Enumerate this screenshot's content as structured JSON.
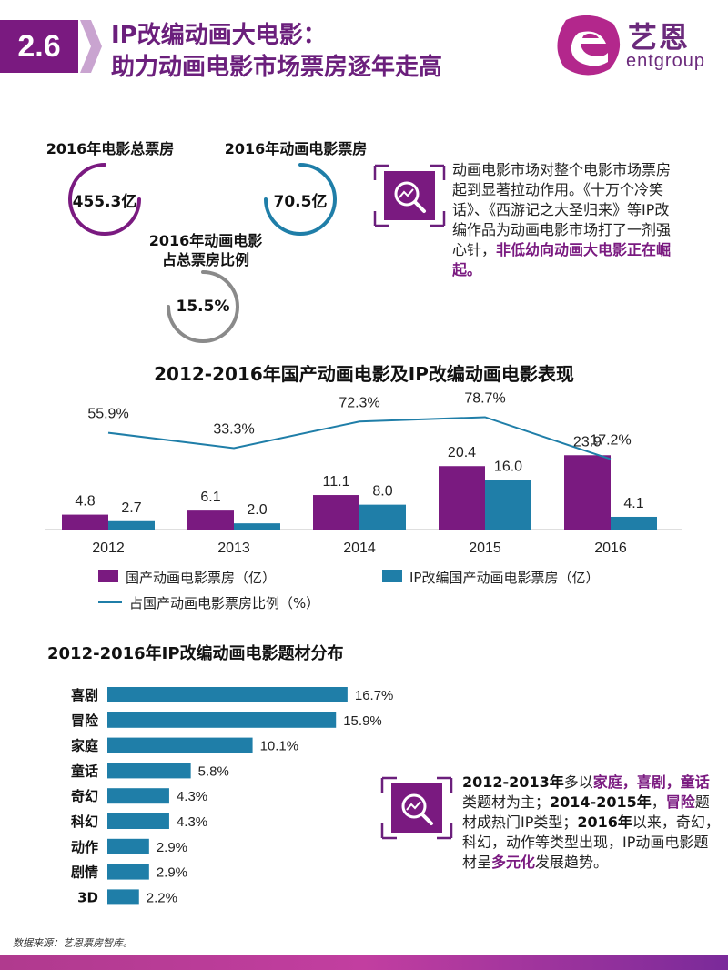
{
  "header": {
    "section": "2.6",
    "title_line1": "IP改编动画大电影：",
    "title_line2": "助力动画电影市场票房逐年走高",
    "logo_cn": "艺恩",
    "logo_en": "entgroup"
  },
  "stats": [
    {
      "label": "2016年电影总票房",
      "value": "455.3亿"
    },
    {
      "label": "2016年动画电影票房",
      "value": "70.5亿"
    },
    {
      "label_line1": "2016年动画电影",
      "label_line2": "占总票房比例",
      "value": "15.5%"
    }
  ],
  "info1": {
    "text": "动画电影市场对整个电影市场票房起到显著拉动作用。《十万个冷笑话》、《西游记之大圣归来》等IP改编作品为动画电影市场打了一剂强心针，",
    "highlight": "非低幼向动画大电影正在崛起。"
  },
  "info2": {
    "p1": "2012-2013年",
    "p2": "多以",
    "p3": "家庭，喜剧，童话",
    "p4": "类题材为主；",
    "p5": "2014-2015年",
    "p6": "，",
    "p7": "冒险",
    "p8": "题材成热门IP类型；",
    "p9": "2016年",
    "p10": "以来，奇幻，科幻，动作等类型出现，IP动画电影题材呈",
    "p11": "多元化",
    "p12": "发展趋势。"
  },
  "colors": {
    "purple": "#7a1a80",
    "teal": "#1f7ea8",
    "gray": "#7f7f7f"
  },
  "chart_data": [
    {
      "type": "bar",
      "title": "2012-2016年国产动画电影及IP改编动画电影表现",
      "categories": [
        "2012",
        "2013",
        "2014",
        "2015",
        "2016"
      ],
      "series": [
        {
          "name": "国产动画电影票房（亿）",
          "values": [
            4.8,
            6.1,
            11.1,
            20.4,
            23.9
          ],
          "labels": [
            "4.8",
            "6.1",
            "11.1",
            "20.4",
            "23.9"
          ]
        },
        {
          "name": "IP改编国产动画电影票房（亿）",
          "values": [
            2.7,
            2.0,
            8.0,
            16.0,
            4.1
          ],
          "labels": [
            "2.7",
            "2.0",
            "8.0",
            "16.0",
            "4.1"
          ]
        }
      ],
      "line_series": {
        "name": "占国产动画电影票房比例（%）",
        "values": [
          55.9,
          33.3,
          72.3,
          78.7,
          17.2
        ],
        "labels": [
          "55.9%",
          "33.3%",
          "72.3%",
          "78.7%",
          "17.2%"
        ]
      },
      "legend": "bottom"
    },
    {
      "type": "bar",
      "orientation": "horizontal",
      "title": "2012-2016年IP改编动画电影题材分布",
      "categories": [
        "喜剧",
        "冒险",
        "家庭",
        "童话",
        "奇幻",
        "科幻",
        "动作",
        "剧情",
        "3D"
      ],
      "values": [
        16.7,
        15.9,
        10.1,
        5.8,
        4.3,
        4.3,
        2.9,
        2.9,
        2.2
      ],
      "labels": [
        "16.7%",
        "15.9%",
        "10.1%",
        "5.8%",
        "4.3%",
        "4.3%",
        "2.9%",
        "2.9%",
        "2.2%"
      ]
    }
  ],
  "source": "数据来源：艺恩票房智库。"
}
